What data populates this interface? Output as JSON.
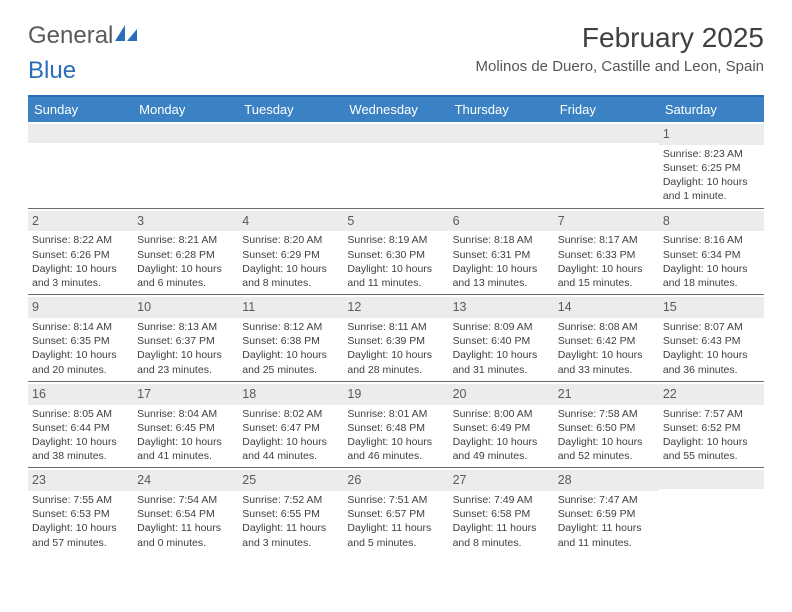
{
  "logo": {
    "word1": "General",
    "word2": "Blue"
  },
  "title": "February 2025",
  "location": "Molinos de Duero, Castille and Leon, Spain",
  "colors": {
    "header_bar": "#3b82c4",
    "accent": "#2a6ebb",
    "daynum_bg": "#ececec",
    "rule": "#6a6a6a",
    "text": "#404040"
  },
  "dayheads": [
    "Sunday",
    "Monday",
    "Tuesday",
    "Wednesday",
    "Thursday",
    "Friday",
    "Saturday"
  ],
  "weeks": [
    [
      {
        "n": "",
        "l": [
          "",
          "",
          "",
          ""
        ]
      },
      {
        "n": "",
        "l": [
          "",
          "",
          "",
          ""
        ]
      },
      {
        "n": "",
        "l": [
          "",
          "",
          "",
          ""
        ]
      },
      {
        "n": "",
        "l": [
          "",
          "",
          "",
          ""
        ]
      },
      {
        "n": "",
        "l": [
          "",
          "",
          "",
          ""
        ]
      },
      {
        "n": "",
        "l": [
          "",
          "",
          "",
          ""
        ]
      },
      {
        "n": "1",
        "l": [
          "Sunrise: 8:23 AM",
          "Sunset: 6:25 PM",
          "Daylight: 10 hours",
          "and 1 minute."
        ]
      }
    ],
    [
      {
        "n": "2",
        "l": [
          "Sunrise: 8:22 AM",
          "Sunset: 6:26 PM",
          "Daylight: 10 hours",
          "and 3 minutes."
        ]
      },
      {
        "n": "3",
        "l": [
          "Sunrise: 8:21 AM",
          "Sunset: 6:28 PM",
          "Daylight: 10 hours",
          "and 6 minutes."
        ]
      },
      {
        "n": "4",
        "l": [
          "Sunrise: 8:20 AM",
          "Sunset: 6:29 PM",
          "Daylight: 10 hours",
          "and 8 minutes."
        ]
      },
      {
        "n": "5",
        "l": [
          "Sunrise: 8:19 AM",
          "Sunset: 6:30 PM",
          "Daylight: 10 hours",
          "and 11 minutes."
        ]
      },
      {
        "n": "6",
        "l": [
          "Sunrise: 8:18 AM",
          "Sunset: 6:31 PM",
          "Daylight: 10 hours",
          "and 13 minutes."
        ]
      },
      {
        "n": "7",
        "l": [
          "Sunrise: 8:17 AM",
          "Sunset: 6:33 PM",
          "Daylight: 10 hours",
          "and 15 minutes."
        ]
      },
      {
        "n": "8",
        "l": [
          "Sunrise: 8:16 AM",
          "Sunset: 6:34 PM",
          "Daylight: 10 hours",
          "and 18 minutes."
        ]
      }
    ],
    [
      {
        "n": "9",
        "l": [
          "Sunrise: 8:14 AM",
          "Sunset: 6:35 PM",
          "Daylight: 10 hours",
          "and 20 minutes."
        ]
      },
      {
        "n": "10",
        "l": [
          "Sunrise: 8:13 AM",
          "Sunset: 6:37 PM",
          "Daylight: 10 hours",
          "and 23 minutes."
        ]
      },
      {
        "n": "11",
        "l": [
          "Sunrise: 8:12 AM",
          "Sunset: 6:38 PM",
          "Daylight: 10 hours",
          "and 25 minutes."
        ]
      },
      {
        "n": "12",
        "l": [
          "Sunrise: 8:11 AM",
          "Sunset: 6:39 PM",
          "Daylight: 10 hours",
          "and 28 minutes."
        ]
      },
      {
        "n": "13",
        "l": [
          "Sunrise: 8:09 AM",
          "Sunset: 6:40 PM",
          "Daylight: 10 hours",
          "and 31 minutes."
        ]
      },
      {
        "n": "14",
        "l": [
          "Sunrise: 8:08 AM",
          "Sunset: 6:42 PM",
          "Daylight: 10 hours",
          "and 33 minutes."
        ]
      },
      {
        "n": "15",
        "l": [
          "Sunrise: 8:07 AM",
          "Sunset: 6:43 PM",
          "Daylight: 10 hours",
          "and 36 minutes."
        ]
      }
    ],
    [
      {
        "n": "16",
        "l": [
          "Sunrise: 8:05 AM",
          "Sunset: 6:44 PM",
          "Daylight: 10 hours",
          "and 38 minutes."
        ]
      },
      {
        "n": "17",
        "l": [
          "Sunrise: 8:04 AM",
          "Sunset: 6:45 PM",
          "Daylight: 10 hours",
          "and 41 minutes."
        ]
      },
      {
        "n": "18",
        "l": [
          "Sunrise: 8:02 AM",
          "Sunset: 6:47 PM",
          "Daylight: 10 hours",
          "and 44 minutes."
        ]
      },
      {
        "n": "19",
        "l": [
          "Sunrise: 8:01 AM",
          "Sunset: 6:48 PM",
          "Daylight: 10 hours",
          "and 46 minutes."
        ]
      },
      {
        "n": "20",
        "l": [
          "Sunrise: 8:00 AM",
          "Sunset: 6:49 PM",
          "Daylight: 10 hours",
          "and 49 minutes."
        ]
      },
      {
        "n": "21",
        "l": [
          "Sunrise: 7:58 AM",
          "Sunset: 6:50 PM",
          "Daylight: 10 hours",
          "and 52 minutes."
        ]
      },
      {
        "n": "22",
        "l": [
          "Sunrise: 7:57 AM",
          "Sunset: 6:52 PM",
          "Daylight: 10 hours",
          "and 55 minutes."
        ]
      }
    ],
    [
      {
        "n": "23",
        "l": [
          "Sunrise: 7:55 AM",
          "Sunset: 6:53 PM",
          "Daylight: 10 hours",
          "and 57 minutes."
        ]
      },
      {
        "n": "24",
        "l": [
          "Sunrise: 7:54 AM",
          "Sunset: 6:54 PM",
          "Daylight: 11 hours",
          "and 0 minutes."
        ]
      },
      {
        "n": "25",
        "l": [
          "Sunrise: 7:52 AM",
          "Sunset: 6:55 PM",
          "Daylight: 11 hours",
          "and 3 minutes."
        ]
      },
      {
        "n": "26",
        "l": [
          "Sunrise: 7:51 AM",
          "Sunset: 6:57 PM",
          "Daylight: 11 hours",
          "and 5 minutes."
        ]
      },
      {
        "n": "27",
        "l": [
          "Sunrise: 7:49 AM",
          "Sunset: 6:58 PM",
          "Daylight: 11 hours",
          "and 8 minutes."
        ]
      },
      {
        "n": "28",
        "l": [
          "Sunrise: 7:47 AM",
          "Sunset: 6:59 PM",
          "Daylight: 11 hours",
          "and 11 minutes."
        ]
      },
      {
        "n": "",
        "l": [
          "",
          "",
          "",
          ""
        ]
      }
    ]
  ]
}
